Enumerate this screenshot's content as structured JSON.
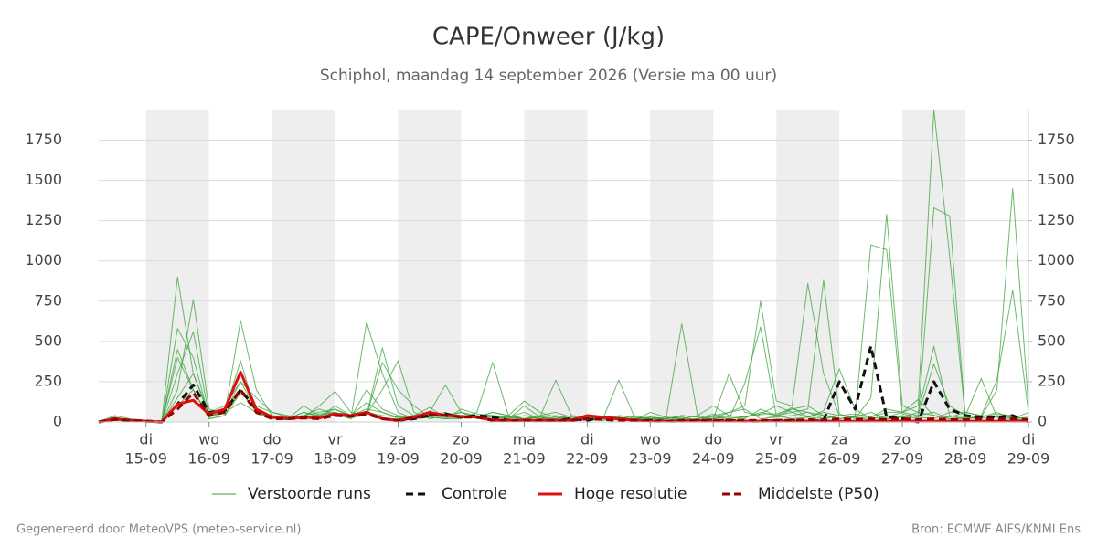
{
  "chart_data": {
    "type": "line",
    "title": "CAPE/Onweer (J/kg)",
    "subtitle": "Schiphol, maandag 14 september 2026 (Versie ma 00 uur)",
    "footer_left": "Gegenereerd door MeteoVPS (meteo-service.nl)",
    "footer_right": "Bron: ECMWF AIFS/KNMI Ens",
    "x": [
      "14-09 06:00",
      "14-09 12:00",
      "14-09 18:00",
      "15-09 00:00",
      "15-09 06:00",
      "15-09 12:00",
      "15-09 18:00",
      "16-09 00:00",
      "16-09 06:00",
      "16-09 12:00",
      "16-09 18:00",
      "17-09 00:00",
      "17-09 06:00",
      "17-09 12:00",
      "17-09 18:00",
      "18-09 00:00",
      "18-09 06:00",
      "18-09 12:00",
      "18-09 18:00",
      "19-09 00:00",
      "19-09 06:00",
      "19-09 12:00",
      "19-09 18:00",
      "20-09 00:00",
      "20-09 06:00",
      "20-09 12:00",
      "20-09 18:00",
      "21-09 00:00",
      "21-09 06:00",
      "21-09 12:00",
      "21-09 18:00",
      "22-09 00:00",
      "22-09 06:00",
      "22-09 12:00",
      "22-09 18:00",
      "23-09 00:00",
      "23-09 06:00",
      "23-09 12:00",
      "23-09 18:00",
      "24-09 00:00",
      "24-09 06:00",
      "24-09 12:00",
      "24-09 18:00",
      "25-09 00:00",
      "25-09 06:00",
      "25-09 12:00",
      "25-09 18:00",
      "26-09 00:00",
      "26-09 06:00",
      "26-09 12:00",
      "26-09 18:00",
      "27-09 00:00",
      "27-09 06:00",
      "27-09 12:00",
      "27-09 18:00",
      "28-09 00:00",
      "28-09 06:00",
      "28-09 12:00",
      "28-09 18:00",
      "29-09 00:00"
    ],
    "xlim": [
      "14-09 06:00",
      "29-09 00:00"
    ],
    "xticks": [
      {
        "value": "15-09 00:00",
        "label": "15-09",
        "weekday": "di"
      },
      {
        "value": "16-09 00:00",
        "label": "16-09",
        "weekday": "wo"
      },
      {
        "value": "17-09 00:00",
        "label": "17-09",
        "weekday": "do"
      },
      {
        "value": "18-09 00:00",
        "label": "18-09",
        "weekday": "vr"
      },
      {
        "value": "19-09 00:00",
        "label": "19-09",
        "weekday": "za"
      },
      {
        "value": "20-09 00:00",
        "label": "20-09",
        "weekday": "zo"
      },
      {
        "value": "21-09 00:00",
        "label": "21-09",
        "weekday": "ma"
      },
      {
        "value": "22-09 00:00",
        "label": "22-09",
        "weekday": "di"
      },
      {
        "value": "23-09 00:00",
        "label": "23-09",
        "weekday": "wo"
      },
      {
        "value": "24-09 00:00",
        "label": "24-09",
        "weekday": "do"
      },
      {
        "value": "25-09 00:00",
        "label": "25-09",
        "weekday": "vr"
      },
      {
        "value": "26-09 00:00",
        "label": "26-09",
        "weekday": "za"
      },
      {
        "value": "27-09 00:00",
        "label": "27-09",
        "weekday": "zo"
      },
      {
        "value": "28-09 00:00",
        "label": "28-09",
        "weekday": "ma"
      },
      {
        "value": "29-09 00:00",
        "label": "29-09",
        "weekday": "di"
      }
    ],
    "ylim": [
      0,
      1940
    ],
    "yticks": [
      0,
      250,
      500,
      750,
      1000,
      1250,
      1500,
      1750
    ],
    "y2lim": [
      0,
      1940
    ],
    "y2ticks": [
      0,
      250,
      500,
      750,
      1000,
      1250,
      1500,
      1750
    ],
    "grid": true,
    "series": [
      {
        "name": "Verstoorde runs",
        "color": "#3aa33a",
        "members": [
          [
            0,
            30,
            10,
            5,
            0,
            900,
            300,
            60,
            100,
            250,
            150,
            60,
            30,
            40,
            80,
            50,
            20,
            620,
            300,
            60,
            20,
            30,
            50,
            40,
            30,
            60,
            40,
            20,
            30,
            10,
            20,
            30,
            10,
            20,
            40,
            20,
            30,
            10,
            20,
            50,
            30,
            20,
            80,
            40,
            90,
            30,
            20,
            40,
            30,
            10,
            20,
            40,
            20,
            1330,
            1280,
            20,
            40,
            30,
            20,
            10
          ],
          [
            0,
            20,
            5,
            5,
            0,
            200,
            760,
            80,
            50,
            630,
            200,
            40,
            20,
            60,
            30,
            100,
            40,
            80,
            60,
            20,
            40,
            90,
            30,
            60,
            40,
            30,
            20,
            40,
            20,
            30,
            10,
            20,
            10,
            40,
            30,
            20,
            20,
            610,
            40,
            100,
            40,
            30,
            50,
            50,
            80,
            60,
            40,
            20,
            30,
            1100,
            1070,
            50,
            30,
            20,
            60,
            60,
            40,
            30,
            20,
            30
          ],
          [
            0,
            40,
            20,
            10,
            0,
            580,
            400,
            30,
            80,
            200,
            100,
            60,
            40,
            30,
            100,
            190,
            60,
            40,
            460,
            100,
            40,
            30,
            20,
            80,
            50,
            40,
            30,
            60,
            20,
            10,
            30,
            20,
            30,
            10,
            20,
            30,
            20,
            40,
            30,
            20,
            60,
            100,
            750,
            130,
            100,
            860,
            300,
            40,
            50,
            30,
            60,
            60,
            100,
            1940,
            1030,
            20,
            30,
            50,
            40,
            10
          ],
          [
            0,
            10,
            5,
            5,
            0,
            300,
            560,
            40,
            60,
            380,
            50,
            30,
            20,
            40,
            60,
            80,
            30,
            50,
            200,
            380,
            60,
            20,
            40,
            60,
            30,
            40,
            20,
            100,
            30,
            20,
            40,
            10,
            20,
            30,
            20,
            30,
            10,
            20,
            40,
            30,
            20,
            240,
            590,
            40,
            60,
            80,
            880,
            50,
            20,
            150,
            1290,
            100,
            60,
            40,
            20,
            20,
            30,
            200,
            1450,
            100
          ],
          [
            0,
            30,
            10,
            5,
            0,
            400,
            200,
            20,
            40,
            180,
            80,
            40,
            30,
            20,
            50,
            60,
            30,
            40,
            370,
            200,
            100,
            30,
            20,
            20,
            60,
            370,
            40,
            130,
            60,
            30,
            20,
            10,
            20,
            30,
            10,
            60,
            30,
            20,
            10,
            40,
            20,
            30,
            50,
            100,
            60,
            30,
            70,
            330,
            80,
            20,
            30,
            60,
            140,
            40,
            30,
            60,
            40,
            260,
            820,
            60
          ],
          [
            0,
            20,
            10,
            5,
            0,
            150,
            300,
            40,
            60,
            250,
            80,
            30,
            20,
            60,
            40,
            80,
            40,
            120,
            60,
            30,
            40,
            60,
            20,
            40,
            30,
            60,
            40,
            20,
            30,
            260,
            40,
            30,
            20,
            260,
            30,
            10,
            20,
            30,
            10,
            40,
            60,
            80,
            20,
            30,
            40,
            60,
            20,
            40,
            30,
            60,
            20,
            30,
            60,
            470,
            40,
            20,
            30,
            60,
            20,
            10
          ],
          [
            0,
            10,
            5,
            0,
            0,
            450,
            200,
            20,
            40,
            200,
            60,
            30,
            20,
            100,
            40,
            60,
            30,
            200,
            80,
            40,
            30,
            60,
            230,
            60,
            20,
            40,
            30,
            20,
            40,
            60,
            30,
            10,
            20,
            30,
            10,
            30,
            20,
            40,
            30,
            20,
            300,
            60,
            40,
            30,
            80,
            100,
            40,
            20,
            40,
            30,
            80,
            60,
            40,
            360,
            100,
            40,
            270,
            30,
            20,
            60
          ],
          [
            0,
            20,
            10,
            5,
            0,
            100,
            200,
            30,
            60,
            120,
            60,
            20,
            30,
            40,
            30,
            50,
            20,
            60,
            40,
            30,
            20,
            40,
            60,
            30,
            40,
            20,
            30,
            20,
            30,
            40,
            20,
            10,
            20,
            10,
            30,
            20,
            20,
            30,
            10,
            20,
            40,
            30,
            60,
            40,
            20,
            30,
            60,
            40,
            30,
            20,
            40,
            30,
            40,
            60,
            20,
            30,
            20,
            40,
            30,
            20
          ]
        ]
      },
      {
        "name": "Controle",
        "color": "#111111",
        "style": "dashed",
        "values": [
          0,
          20,
          10,
          5,
          0,
          110,
          230,
          60,
          70,
          200,
          80,
          30,
          20,
          30,
          25,
          50,
          40,
          60,
          20,
          10,
          20,
          40,
          50,
          30,
          40,
          30,
          10,
          10,
          10,
          10,
          20,
          10,
          30,
          20,
          10,
          10,
          5,
          5,
          10,
          10,
          10,
          5,
          5,
          10,
          10,
          5,
          10,
          250,
          80,
          470,
          30,
          20,
          0,
          250,
          80,
          40,
          30,
          30,
          40,
          0
        ]
      },
      {
        "name": "Hoge resolutie",
        "color": "#dd1111",
        "style": "solid",
        "values": [
          0,
          20,
          10,
          5,
          0,
          110,
          135,
          50,
          80,
          310,
          80,
          30,
          20,
          30,
          25,
          50,
          40,
          60,
          20,
          10,
          30,
          60,
          40,
          35,
          30,
          10,
          10,
          10,
          10,
          10,
          10,
          40,
          30,
          20,
          10,
          5,
          5,
          5,
          5,
          5,
          5,
          5,
          5,
          5,
          5,
          5,
          5,
          5,
          5,
          5,
          5,
          5,
          5,
          5,
          5,
          5,
          5,
          5,
          5,
          5
        ]
      },
      {
        "name": "Middelste (P50)",
        "color": "#990000",
        "style": "dashed",
        "values": [
          0,
          15,
          10,
          5,
          0,
          80,
          180,
          40,
          60,
          200,
          60,
          20,
          20,
          25,
          20,
          40,
          35,
          50,
          20,
          10,
          25,
          45,
          40,
          30,
          30,
          10,
          10,
          10,
          10,
          10,
          10,
          20,
          15,
          10,
          10,
          5,
          5,
          10,
          10,
          10,
          10,
          10,
          10,
          10,
          10,
          15,
          10,
          20,
          15,
          20,
          15,
          20,
          15,
          20,
          15,
          15,
          20,
          15,
          20,
          15
        ]
      }
    ]
  }
}
